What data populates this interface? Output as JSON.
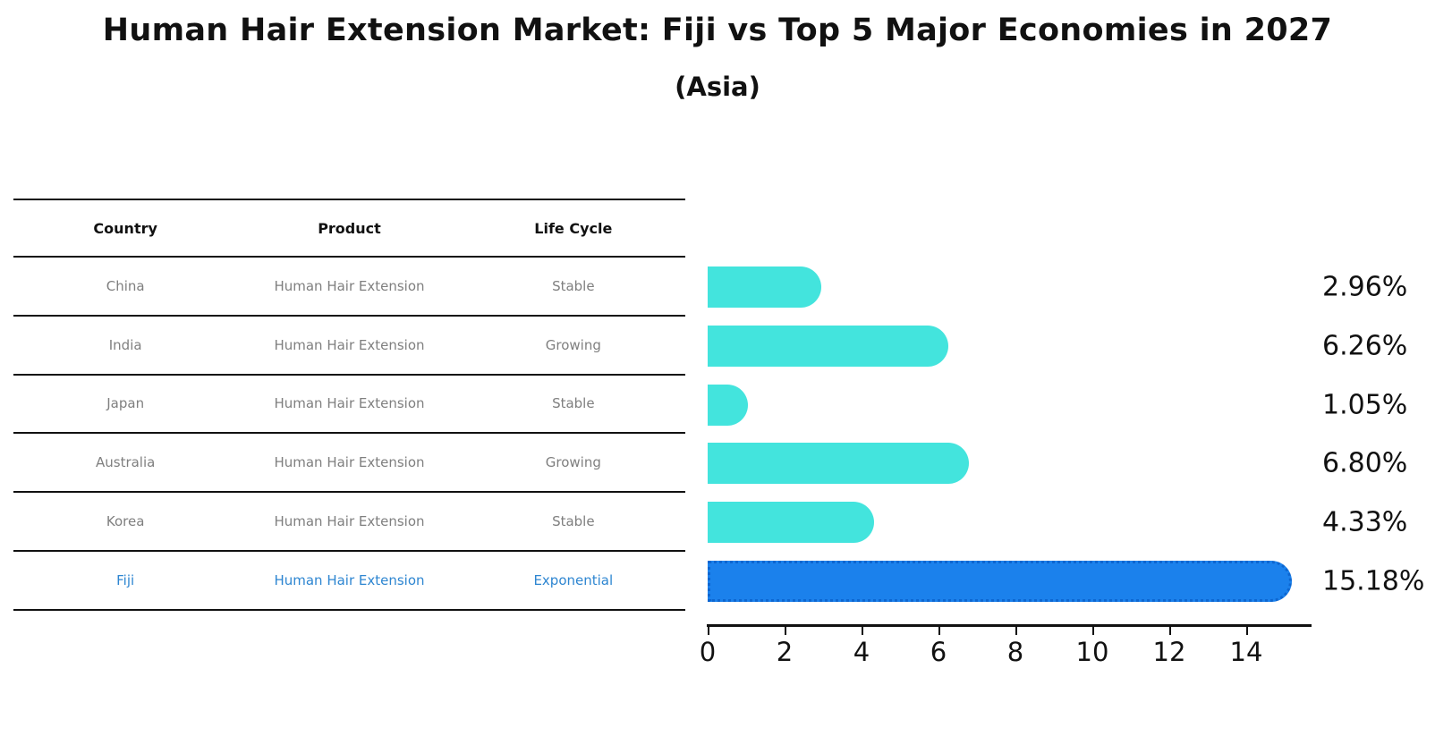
{
  "title": "Human Hair Extension Market: Fiji vs Top 5 Major Economies in 2027",
  "subtitle": "(Asia)",
  "table": {
    "headers": [
      "Country",
      "Product",
      "Life Cycle"
    ]
  },
  "chart_data": {
    "type": "bar",
    "orientation": "horizontal",
    "title": "Human Hair Extension Market: Fiji vs Top 5 Major Economies in 2027",
    "subtitle": "(Asia)",
    "categories": [
      "China",
      "India",
      "Japan",
      "Australia",
      "Korea",
      "Fiji"
    ],
    "values": [
      2.96,
      6.26,
      1.05,
      6.8,
      4.33,
      15.18
    ],
    "rows": [
      {
        "country": "China",
        "product": "Human Hair Extension",
        "life_cycle": "Stable",
        "value": 2.96,
        "label": "2.96%",
        "highlight": false
      },
      {
        "country": "India",
        "product": "Human Hair Extension",
        "life_cycle": "Growing",
        "value": 6.26,
        "label": "6.26%",
        "highlight": false
      },
      {
        "country": "Japan",
        "product": "Human Hair Extension",
        "life_cycle": "Stable",
        "value": 1.05,
        "label": "1.05%",
        "highlight": false
      },
      {
        "country": "Australia",
        "product": "Human Hair Extension",
        "life_cycle": "Growing",
        "value": 6.8,
        "label": "6.80%",
        "highlight": false
      },
      {
        "country": "Korea",
        "product": "Human Hair Extension",
        "life_cycle": "Stable",
        "value": 4.33,
        "label": "4.33%",
        "highlight": false
      },
      {
        "country": "Fiji",
        "product": "Human Hair Extension",
        "life_cycle": "Exponential",
        "value": 15.18,
        "label": "15.18%",
        "highlight": true
      }
    ],
    "x_axis": {
      "ticks": [
        0,
        2,
        4,
        6,
        8,
        10,
        12,
        14
      ],
      "min": 0,
      "max": 15.7
    },
    "legend": "none",
    "grid": false,
    "colors": {
      "bar": "#43E4DD",
      "highlight_bar": "#1B81EC",
      "highlight_border": "#0D66D0",
      "highlight_text": "#2E86D1",
      "row_text": "#7F7F7F",
      "text": "#111111"
    }
  }
}
